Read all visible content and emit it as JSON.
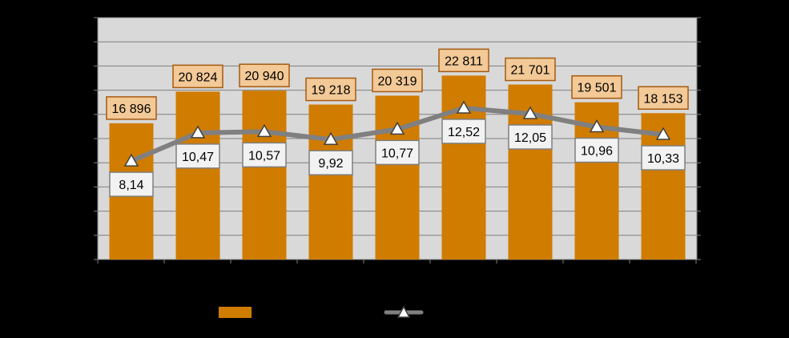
{
  "chart_data": {
    "type": "bar",
    "categories": [
      "",
      "",
      "",
      "",
      "",
      "",
      "",
      "",
      ""
    ],
    "series": [
      {
        "type": "bar",
        "axis": "primary",
        "values": [
          16896,
          20824,
          20940,
          19218,
          20319,
          22811,
          21701,
          19501,
          18153
        ],
        "labels": [
          "16 896",
          "20 824",
          "20 940",
          "19 218",
          "20 319",
          "22 811",
          "21 701",
          "19 501",
          "18 153"
        ],
        "color": "#d07c00"
      },
      {
        "type": "line",
        "axis": "secondary",
        "marker": "triangle",
        "values": [
          8.14,
          10.47,
          10.57,
          9.92,
          10.77,
          12.52,
          12.05,
          10.96,
          10.33
        ],
        "labels": [
          "8,14",
          "10,47",
          "10,57",
          "9,92",
          "10,77",
          "12,52",
          "12,05",
          "10,96",
          "10,33"
        ],
        "color": "#808080"
      }
    ],
    "ylim": [
      0,
      30000
    ],
    "y2lim": [
      0,
      20
    ],
    "grid": true,
    "legend_position": "bottom",
    "plot_background": "#d9d9d9"
  }
}
